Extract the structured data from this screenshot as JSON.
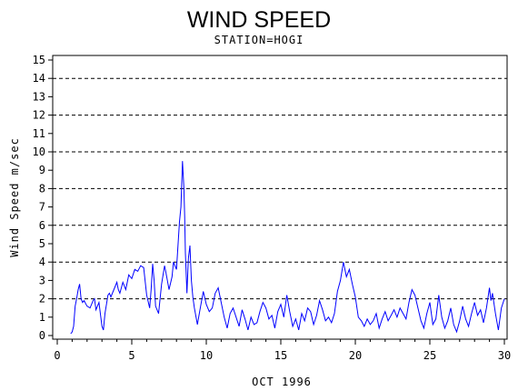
{
  "chart_data": {
    "type": "line",
    "title": "WIND SPEED",
    "subtitle": "STATION=HOGI",
    "xlabel": "OCT 1996",
    "ylabel": "Wind Speed m/sec",
    "xlim": [
      0,
      30
    ],
    "ylim": [
      0,
      15.5
    ],
    "x_ticks": [
      0,
      5,
      10,
      15,
      20,
      25,
      30
    ],
    "y_ticks": [
      0,
      1,
      2,
      3,
      4,
      5,
      6,
      7,
      8,
      9,
      10,
      11,
      12,
      13,
      14,
      15
    ],
    "gridlines_y": [
      2,
      4,
      6,
      8,
      10,
      12,
      14
    ],
    "grid": "dashed horizontal at even values",
    "line_color": "#0000ff",
    "series": [
      {
        "x": [
          0.9,
          1.0,
          1.1,
          1.2,
          1.3,
          1.4,
          1.5,
          1.6,
          1.7,
          1.8,
          2.0,
          2.2,
          2.4,
          2.5,
          2.6,
          2.8,
          3.0,
          3.1,
          3.2,
          3.4,
          3.5,
          3.6,
          3.8,
          4.0,
          4.1,
          4.2,
          4.4,
          4.6,
          4.8,
          5.0,
          5.2,
          5.4,
          5.6,
          5.8,
          6.0,
          6.2,
          6.3,
          6.4,
          6.5,
          6.6,
          6.8,
          7.0,
          7.2,
          7.3,
          7.5,
          7.7,
          7.8,
          8.0,
          8.2,
          8.3,
          8.4,
          8.5,
          8.55,
          8.6,
          8.7,
          8.8,
          8.9,
          9.0,
          9.1,
          9.2,
          9.4,
          9.6,
          9.8,
          10.0,
          10.2,
          10.4,
          10.6,
          10.8,
          11.0,
          11.2,
          11.4,
          11.6,
          11.8,
          12.0,
          12.2,
          12.4,
          12.6,
          12.8,
          13.0,
          13.2,
          13.4,
          13.6,
          13.8,
          14.0,
          14.2,
          14.4,
          14.6,
          14.8,
          15.0,
          15.2,
          15.4,
          15.6,
          15.8,
          16.0,
          16.2,
          16.4,
          16.6,
          16.8,
          17.0,
          17.2,
          17.4,
          17.6,
          17.8,
          18.0,
          18.2,
          18.4,
          18.6,
          18.8,
          19.0,
          19.2,
          19.4,
          19.6,
          19.8,
          20.0,
          20.2,
          20.4,
          20.6,
          20.8,
          21.0,
          21.2,
          21.4,
          21.6,
          21.8,
          22.0,
          22.2,
          22.4,
          22.6,
          22.8,
          23.0,
          23.2,
          23.4,
          23.6,
          23.8,
          24.0,
          24.2,
          24.4,
          24.6,
          24.8,
          25.0,
          25.2,
          25.4,
          25.6,
          25.8,
          26.0,
          26.2,
          26.4,
          26.6,
          26.8,
          27.0,
          27.2,
          27.4,
          27.6,
          27.8,
          28.0,
          28.2,
          28.4,
          28.6,
          28.8,
          29.0,
          29.1,
          29.2,
          29.4,
          29.6,
          29.8,
          30.0
        ],
        "values": [
          0.1,
          0.2,
          0.5,
          1.6,
          2.0,
          2.5,
          2.8,
          2.0,
          1.8,
          1.9,
          1.6,
          1.5,
          1.9,
          2.0,
          1.4,
          1.8,
          0.5,
          0.3,
          1.2,
          2.2,
          2.3,
          2.1,
          2.5,
          2.9,
          2.5,
          2.3,
          2.9,
          2.5,
          3.3,
          3.1,
          3.6,
          3.5,
          3.8,
          3.7,
          2.2,
          1.5,
          2.5,
          3.9,
          3.0,
          1.6,
          1.2,
          2.8,
          3.8,
          3.4,
          2.5,
          3.2,
          4.0,
          3.6,
          6.2,
          7.0,
          9.5,
          8.0,
          6.5,
          4.5,
          2.3,
          4.2,
          4.9,
          3.0,
          2.1,
          1.5,
          0.6,
          1.5,
          2.4,
          1.7,
          1.3,
          1.5,
          2.3,
          2.6,
          1.8,
          1.0,
          0.4,
          1.2,
          1.5,
          1.0,
          0.5,
          1.4,
          0.9,
          0.3,
          1.0,
          0.6,
          0.7,
          1.3,
          1.8,
          1.5,
          0.9,
          1.1,
          0.4,
          1.3,
          1.7,
          1.0,
          2.2,
          1.3,
          0.5,
          0.9,
          0.3,
          1.2,
          0.8,
          1.5,
          1.3,
          0.6,
          1.1,
          1.9,
          1.4,
          0.8,
          1.0,
          0.7,
          1.2,
          2.4,
          3.0,
          4.0,
          3.2,
          3.6,
          2.8,
          2.1,
          1.0,
          0.8,
          0.5,
          0.9,
          0.6,
          0.8,
          1.2,
          0.4,
          0.9,
          1.3,
          0.8,
          1.1,
          1.4,
          1.0,
          1.5,
          1.2,
          0.9,
          1.8,
          2.5,
          2.2,
          1.5,
          0.8,
          0.4,
          1.2,
          1.8,
          0.6,
          0.9,
          2.2,
          1.0,
          0.4,
          0.8,
          1.5,
          0.6,
          0.2,
          0.8,
          1.6,
          0.9,
          0.5,
          1.2,
          1.8,
          1.1,
          1.4,
          0.7,
          1.5,
          2.6,
          1.9,
          2.3,
          1.2,
          0.3,
          1.5,
          2.0
        ]
      }
    ]
  }
}
